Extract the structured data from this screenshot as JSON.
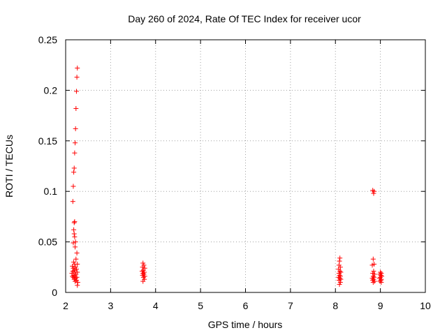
{
  "chart_data": {
    "type": "scatter",
    "title": "Day 260 of 2024, Rate Of TEC Index for receiver ucor",
    "xlabel": "GPS time / hours",
    "ylabel": "ROTI / TECUs",
    "xlim": [
      2,
      10
    ],
    "ylim": [
      0,
      0.25
    ],
    "x_ticks": [
      "2",
      "3",
      "4",
      "5",
      "6",
      "7",
      "8",
      "9",
      "10"
    ],
    "y_ticks": [
      "0",
      "0.05",
      "0.1",
      "0.15",
      "0.2",
      "0.25"
    ],
    "grid": true,
    "marker": "+",
    "color": "#ff0000",
    "series": [
      {
        "points": [
          [
            2.26,
            0.222
          ],
          [
            2.25,
            0.213
          ],
          [
            2.24,
            0.199
          ],
          [
            2.23,
            0.182
          ],
          [
            2.22,
            0.162
          ],
          [
            2.21,
            0.148
          ],
          [
            2.2,
            0.138
          ],
          [
            2.19,
            0.123
          ],
          [
            2.18,
            0.119
          ],
          [
            2.17,
            0.105
          ],
          [
            2.16,
            0.09
          ],
          [
            2.2,
            0.07
          ],
          [
            2.19,
            0.069
          ],
          [
            2.18,
            0.062
          ],
          [
            2.19,
            0.058
          ],
          [
            2.2,
            0.055
          ],
          [
            2.22,
            0.05
          ],
          [
            2.17,
            0.049
          ],
          [
            2.21,
            0.045
          ],
          [
            2.25,
            0.039
          ],
          [
            2.23,
            0.033
          ],
          [
            2.18,
            0.03
          ],
          [
            2.26,
            0.028
          ],
          [
            2.2,
            0.028
          ],
          [
            2.15,
            0.026
          ],
          [
            2.22,
            0.025
          ],
          [
            2.17,
            0.024
          ],
          [
            2.24,
            0.023
          ],
          [
            2.19,
            0.022
          ],
          [
            2.16,
            0.021
          ],
          [
            2.21,
            0.02
          ],
          [
            2.26,
            0.02
          ],
          [
            2.14,
            0.019
          ],
          [
            2.23,
            0.018
          ],
          [
            2.18,
            0.017
          ],
          [
            2.2,
            0.016
          ],
          [
            2.25,
            0.015
          ],
          [
            2.17,
            0.015
          ],
          [
            2.22,
            0.014
          ],
          [
            2.15,
            0.016
          ],
          [
            2.24,
            0.012
          ],
          [
            2.19,
            0.013
          ],
          [
            2.27,
            0.01
          ],
          [
            2.21,
            0.011
          ],
          [
            2.26,
            0.007
          ],
          [
            3.72,
            0.029
          ],
          [
            3.74,
            0.027
          ],
          [
            3.71,
            0.025
          ],
          [
            3.76,
            0.024
          ],
          [
            3.73,
            0.022
          ],
          [
            3.7,
            0.021
          ],
          [
            3.75,
            0.02
          ],
          [
            3.72,
            0.019
          ],
          [
            3.74,
            0.018
          ],
          [
            3.71,
            0.017
          ],
          [
            3.76,
            0.016
          ],
          [
            3.73,
            0.015
          ],
          [
            3.75,
            0.013
          ],
          [
            3.72,
            0.011
          ],
          [
            8.1,
            0.034
          ],
          [
            8.09,
            0.031
          ],
          [
            8.08,
            0.027
          ],
          [
            8.11,
            0.025
          ],
          [
            8.07,
            0.023
          ],
          [
            8.1,
            0.021
          ],
          [
            8.12,
            0.02
          ],
          [
            8.08,
            0.019
          ],
          [
            8.09,
            0.017
          ],
          [
            8.11,
            0.016
          ],
          [
            8.07,
            0.015
          ],
          [
            8.1,
            0.014
          ],
          [
            8.12,
            0.013
          ],
          [
            8.08,
            0.012
          ],
          [
            8.11,
            0.01
          ],
          [
            8.09,
            0.008
          ],
          [
            8.83,
            0.101
          ],
          [
            8.86,
            0.1
          ],
          [
            8.85,
            0.098
          ],
          [
            8.84,
            0.033
          ],
          [
            8.86,
            0.028
          ],
          [
            8.82,
            0.027
          ],
          [
            8.85,
            0.021
          ],
          [
            8.83,
            0.019
          ],
          [
            8.87,
            0.018
          ],
          [
            8.84,
            0.016
          ],
          [
            8.86,
            0.015
          ],
          [
            8.82,
            0.014
          ],
          [
            8.85,
            0.013
          ],
          [
            8.83,
            0.012
          ],
          [
            8.87,
            0.011
          ],
          [
            8.84,
            0.01
          ],
          [
            9.0,
            0.02
          ],
          [
            9.02,
            0.019
          ],
          [
            8.99,
            0.018
          ],
          [
            9.01,
            0.017
          ],
          [
            9.03,
            0.016
          ],
          [
            9.0,
            0.015
          ],
          [
            8.98,
            0.014
          ],
          [
            9.02,
            0.013
          ],
          [
            9.01,
            0.012
          ],
          [
            8.99,
            0.011
          ],
          [
            9.02,
            0.01
          ]
        ]
      }
    ]
  }
}
